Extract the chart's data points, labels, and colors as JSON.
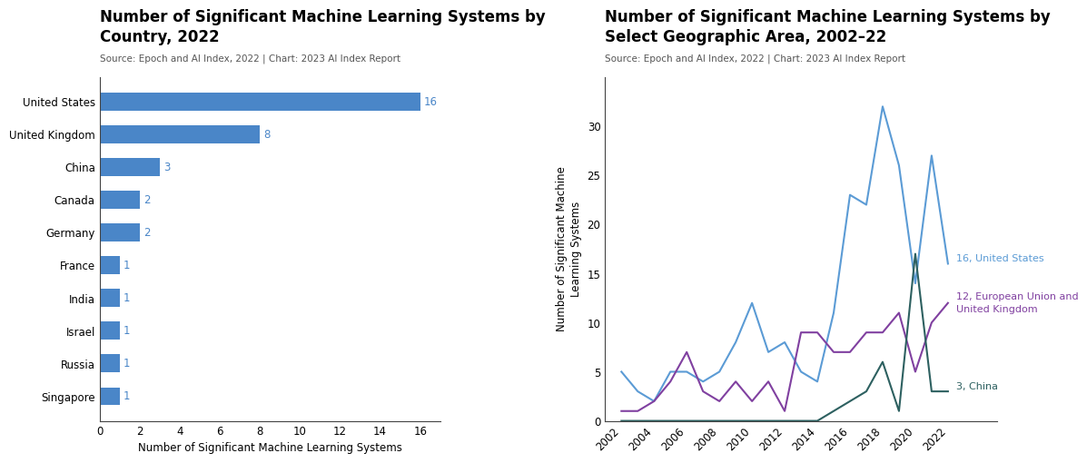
{
  "bar_chart": {
    "title": "Number of Significant Machine Learning Systems by\nCountry, 2022",
    "source": "Source: Epoch and AI Index, 2022 | Chart: 2023 AI Index Report",
    "xlabel": "Number of Significant Machine Learning Systems",
    "countries": [
      "Singapore",
      "Russia",
      "Israel",
      "India",
      "France",
      "Germany",
      "Canada",
      "China",
      "United Kingdom",
      "United States"
    ],
    "values": [
      1,
      1,
      1,
      1,
      1,
      2,
      2,
      3,
      8,
      16
    ],
    "bar_color": "#4a86c8",
    "label_color": "#4a86c8",
    "xlim": [
      0,
      17
    ],
    "xticks": [
      0,
      2,
      4,
      6,
      8,
      10,
      12,
      14,
      16
    ]
  },
  "line_chart": {
    "title": "Number of Significant Machine Learning Systems by\nSelect Geographic Area, 2002–22",
    "source": "Source: Epoch and AI Index, 2022 | Chart: 2023 AI Index Report",
    "ylabel": "Number of Significant Machine\nLearning Systems",
    "years": [
      2002,
      2003,
      2004,
      2005,
      2006,
      2007,
      2008,
      2009,
      2010,
      2011,
      2012,
      2013,
      2014,
      2015,
      2016,
      2017,
      2018,
      2019,
      2020,
      2021,
      2022
    ],
    "us_values": [
      5,
      3,
      2,
      5,
      5,
      4,
      5,
      8,
      12,
      7,
      8,
      5,
      4,
      11,
      23,
      22,
      32,
      26,
      14,
      27,
      16
    ],
    "eu_values": [
      1,
      1,
      2,
      4,
      7,
      3,
      2,
      4,
      2,
      4,
      1,
      9,
      9,
      7,
      7,
      9,
      9,
      11,
      5,
      10,
      12
    ],
    "china_values": [
      0,
      0,
      0,
      0,
      0,
      0,
      0,
      0,
      0,
      0,
      0,
      0,
      0,
      1,
      2,
      3,
      6,
      1,
      17,
      3,
      3
    ],
    "us_color": "#5b9bd5",
    "eu_color": "#8040a0",
    "china_color": "#2d6060",
    "ylim": [
      0,
      35
    ],
    "yticks": [
      0,
      5,
      10,
      15,
      20,
      25,
      30
    ],
    "xtick_years": [
      2002,
      2004,
      2006,
      2008,
      2010,
      2012,
      2014,
      2016,
      2018,
      2020,
      2022
    ],
    "us_label": "16, United States",
    "eu_label": "12, European Union and\nUnited Kingdom",
    "china_label": "3, China",
    "us_label_color": "#5b9bd5",
    "eu_label_color": "#8040a0",
    "china_label_color": "#2d6060"
  },
  "background_color": "#ffffff",
  "title_fontsize": 12,
  "source_fontsize": 7.5,
  "tick_fontsize": 8.5,
  "label_fontsize": 8.5
}
